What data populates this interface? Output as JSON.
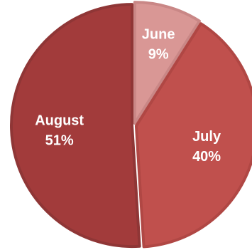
{
  "chart_data": {
    "type": "pie",
    "title": "",
    "categories": [
      "June",
      "July",
      "August"
    ],
    "values": [
      9,
      40,
      51
    ],
    "value_labels": [
      "9%",
      "40%",
      "51%"
    ],
    "colors": [
      "#D99795",
      "#C0504D",
      "#A23B3B"
    ],
    "slice_border_colors": [
      "#C98786",
      "#B04744",
      "#8F3636"
    ],
    "start": "12 o'clock",
    "direction": "clockwise",
    "labels_inside": true,
    "legend": "none"
  }
}
